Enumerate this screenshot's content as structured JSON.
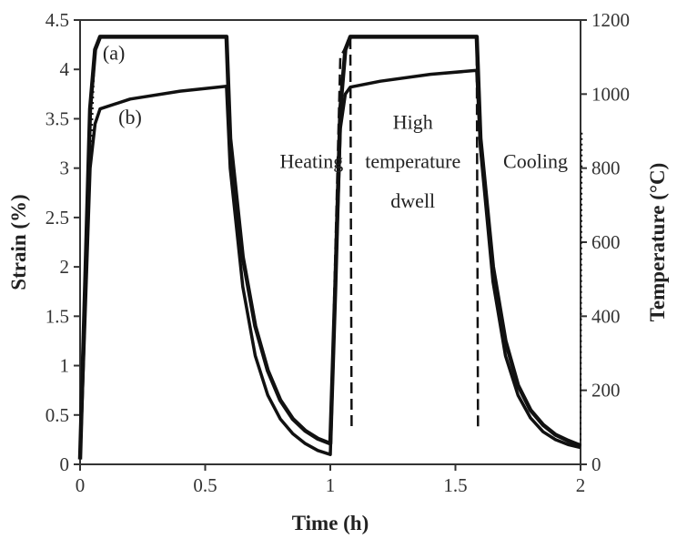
{
  "chart_data": {
    "type": "line",
    "title": "",
    "xlabel": "Time (h)",
    "ylabel": "Strain (%)",
    "y2label": "Temperature (°C)",
    "xlim": [
      0,
      2
    ],
    "ylim": [
      0,
      4.5
    ],
    "y2lim": [
      0,
      1200
    ],
    "x_ticks": [
      "0",
      "0.5",
      "1",
      "1.5",
      "2"
    ],
    "y_ticks": [
      "0",
      "0.5",
      "1",
      "1.5",
      "2",
      "2.5",
      "3",
      "3.5",
      "4",
      "4.5"
    ],
    "y2_ticks": [
      "0",
      "200",
      "400",
      "600",
      "800",
      "1000",
      "1200"
    ],
    "grid": false,
    "series": [
      {
        "name": "(a)",
        "values": [
          [
            0,
            0.05
          ],
          [
            0.02,
            1.8
          ],
          [
            0.04,
            3.6
          ],
          [
            0.06,
            4.2
          ],
          [
            0.08,
            4.33
          ],
          [
            0.3,
            4.33
          ],
          [
            0.585,
            4.33
          ],
          [
            0.6,
            3.3
          ],
          [
            0.65,
            2.1
          ],
          [
            0.7,
            1.4
          ],
          [
            0.75,
            0.95
          ],
          [
            0.8,
            0.65
          ],
          [
            0.85,
            0.46
          ],
          [
            0.9,
            0.34
          ],
          [
            0.95,
            0.26
          ],
          [
            1.0,
            0.21
          ],
          [
            1.02,
            1.8
          ],
          [
            1.04,
            3.6
          ],
          [
            1.06,
            4.2
          ],
          [
            1.08,
            4.33
          ],
          [
            1.3,
            4.33
          ],
          [
            1.585,
            4.33
          ],
          [
            1.6,
            3.3
          ],
          [
            1.65,
            2.0
          ],
          [
            1.7,
            1.25
          ],
          [
            1.75,
            0.8
          ],
          [
            1.8,
            0.55
          ],
          [
            1.85,
            0.4
          ],
          [
            1.9,
            0.3
          ],
          [
            1.95,
            0.24
          ],
          [
            2.0,
            0.19
          ]
        ]
      },
      {
        "name": "(b)",
        "values": [
          [
            0,
            0.05
          ],
          [
            0.02,
            1.5
          ],
          [
            0.04,
            3.0
          ],
          [
            0.06,
            3.45
          ],
          [
            0.08,
            3.6
          ],
          [
            0.2,
            3.7
          ],
          [
            0.4,
            3.78
          ],
          [
            0.585,
            3.83
          ],
          [
            0.6,
            3.0
          ],
          [
            0.65,
            1.8
          ],
          [
            0.7,
            1.1
          ],
          [
            0.75,
            0.7
          ],
          [
            0.8,
            0.46
          ],
          [
            0.85,
            0.31
          ],
          [
            0.9,
            0.21
          ],
          [
            0.95,
            0.14
          ],
          [
            1.0,
            0.1
          ],
          [
            1.02,
            1.8
          ],
          [
            1.04,
            3.4
          ],
          [
            1.06,
            3.75
          ],
          [
            1.08,
            3.82
          ],
          [
            1.2,
            3.88
          ],
          [
            1.4,
            3.95
          ],
          [
            1.585,
            3.99
          ],
          [
            1.6,
            3.2
          ],
          [
            1.65,
            1.85
          ],
          [
            1.7,
            1.1
          ],
          [
            1.75,
            0.7
          ],
          [
            1.8,
            0.47
          ],
          [
            1.85,
            0.33
          ],
          [
            1.9,
            0.25
          ],
          [
            1.95,
            0.2
          ],
          [
            2.0,
            0.17
          ]
        ]
      }
    ],
    "temperature_segments": [
      {
        "style": "dashed",
        "values": [
          [
            1.0,
            50
          ],
          [
            1.04,
            1100
          ],
          [
            1.08,
            1150
          ],
          [
            1.085,
            100
          ]
        ]
      },
      {
        "style": "dashed",
        "values": [
          [
            1.585,
            1150
          ],
          [
            1.59,
            100
          ]
        ]
      },
      {
        "style": "dotted",
        "values": [
          [
            0.0,
            30
          ],
          [
            0.06,
            1130
          ]
        ]
      },
      {
        "style": "dotted",
        "values": [
          [
            2.0,
            50
          ],
          [
            2.005,
            900
          ]
        ]
      }
    ],
    "annotations": [
      {
        "text": "(a)",
        "x": 0.135,
        "y": 4.1
      },
      {
        "text": "(b)",
        "x": 0.2,
        "y": 3.45
      },
      {
        "text": "Heating",
        "x": 0.925,
        "y": 3.0
      },
      {
        "text": "High",
        "x": 1.33,
        "y": 3.4
      },
      {
        "text": "temperature",
        "x": 1.33,
        "y": 3.0
      },
      {
        "text": "dwell",
        "x": 1.33,
        "y": 2.6
      },
      {
        "text": "Cooling",
        "x": 1.82,
        "y": 3.0
      }
    ],
    "colors": {
      "line": "#111111",
      "axis": "#333333",
      "text": "#222222"
    }
  }
}
